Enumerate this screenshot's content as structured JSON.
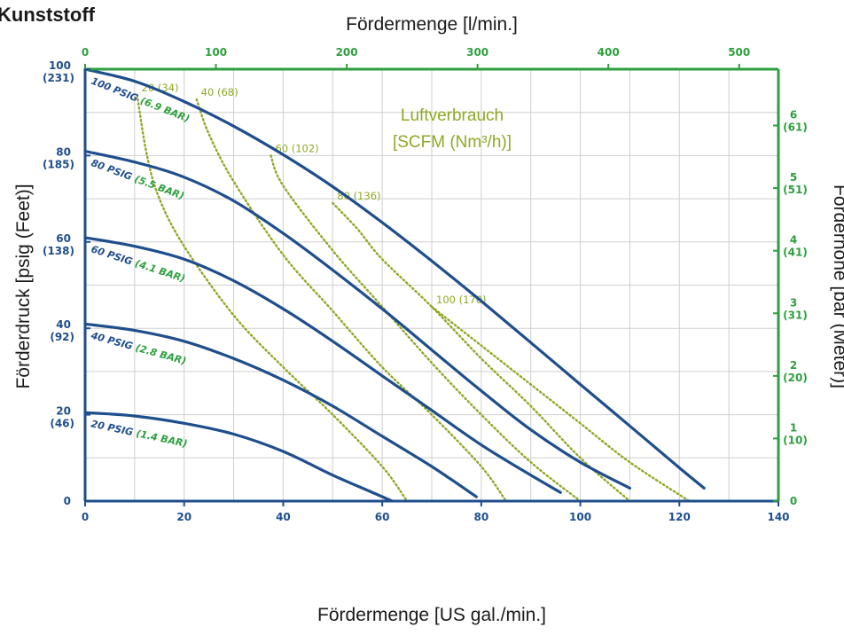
{
  "chart_data": {
    "type": "line",
    "title": "Kunststoff",
    "x_bottom": {
      "label": "Fördermenge [US gal./min.]",
      "range": [
        0,
        140
      ],
      "ticks": [
        0,
        20,
        40,
        60,
        80,
        100,
        120,
        140
      ]
    },
    "x_top": {
      "label": "Fördermenge [l/min.]",
      "range": [
        0,
        530
      ],
      "ticks": [
        0,
        100,
        200,
        300,
        400,
        500
      ]
    },
    "y_left": {
      "label": "Förderdruck [psig (Feet)]",
      "range": [
        0,
        100
      ],
      "ticks": [
        {
          "v": 100,
          "main": "100",
          "sub": "(231)"
        },
        {
          "v": 80,
          "main": "80",
          "sub": "(185)"
        },
        {
          "v": 60,
          "main": "60",
          "sub": "(138)"
        },
        {
          "v": 40,
          "main": "40",
          "sub": "(92)"
        },
        {
          "v": 20,
          "main": "20",
          "sub": "(46)"
        },
        {
          "v": 0,
          "main": "0",
          "sub": ""
        }
      ]
    },
    "y_right": {
      "label": "Förderhöhe [bar (Meter)]",
      "range": [
        0,
        6.9
      ],
      "ticks": [
        {
          "v": 6,
          "main": "6",
          "sub": "(61)"
        },
        {
          "v": 5,
          "main": "5",
          "sub": "(51)"
        },
        {
          "v": 4,
          "main": "4",
          "sub": "(41)"
        },
        {
          "v": 3,
          "main": "3",
          "sub": "(31)"
        },
        {
          "v": 2,
          "main": "2",
          "sub": "(20)"
        },
        {
          "v": 1,
          "main": "1",
          "sub": "(10)"
        },
        {
          "v": 0,
          "main": "0",
          "sub": ""
        }
      ]
    },
    "grid": true,
    "air_legend": {
      "line1": "Luftverbrauch",
      "line2": "[SCFM (Nm³/h)]"
    },
    "pressure_curves": [
      {
        "psig": "100 PSIG",
        "bar": "(6.9 BAR)",
        "x": [
          0,
          10,
          20,
          30,
          40,
          50,
          60,
          70,
          80,
          90,
          100,
          110,
          120,
          125
        ],
        "y": [
          100,
          97.2,
          92.5,
          86.8,
          80.2,
          72.8,
          64.5,
          55.6,
          46.3,
          36.7,
          27,
          17.4,
          7.7,
          3
        ]
      },
      {
        "psig": "80 PSIG",
        "bar": "(5.5 BAR)",
        "x": [
          0,
          10,
          20,
          30,
          40,
          50,
          60,
          70,
          80,
          90,
          100,
          110
        ],
        "y": [
          81,
          78.5,
          75,
          69.5,
          62,
          53.5,
          44.5,
          35,
          25.5,
          16.5,
          9,
          3
        ]
      },
      {
        "psig": "60 PSIG",
        "bar": "(4.1 BAR)",
        "x": [
          0,
          10,
          20,
          30,
          40,
          50,
          60,
          70,
          80,
          90,
          96
        ],
        "y": [
          61,
          59,
          56,
          51,
          44.5,
          37,
          29,
          21,
          13,
          6,
          2
        ]
      },
      {
        "psig": "40 PSIG",
        "bar": "(2.8 BAR)",
        "x": [
          0,
          10,
          20,
          30,
          40,
          50,
          60,
          70,
          79
        ],
        "y": [
          41,
          39.5,
          37,
          33,
          28,
          22,
          15,
          8,
          1
        ]
      },
      {
        "psig": "20 PSIG",
        "bar": "(1.4 BAR)",
        "x": [
          0,
          10,
          20,
          30,
          40,
          50,
          57,
          62
        ],
        "y": [
          20.5,
          19.7,
          18,
          15.5,
          11.5,
          6,
          2.5,
          0
        ]
      }
    ],
    "air_curves": [
      {
        "label": "20 (34)",
        "x": [
          10.5,
          12.5,
          15,
          20,
          30,
          40,
          50,
          60,
          65
        ],
        "y": [
          94,
          80,
          70,
          59,
          43,
          31,
          20,
          8,
          0
        ]
      },
      {
        "label": "40 (68)",
        "x": [
          22.5,
          25,
          30,
          40,
          50,
          60,
          70,
          80,
          85
        ],
        "y": [
          93,
          85,
          74,
          57,
          44,
          31,
          20,
          8,
          0
        ]
      },
      {
        "label": "60 (102)",
        "x": [
          37.5,
          40,
          50,
          60,
          70,
          80,
          90,
          100
        ],
        "y": [
          80,
          73,
          58,
          45,
          32,
          20,
          9,
          0
        ]
      },
      {
        "label": "80 (136)",
        "x": [
          50,
          55,
          60,
          70,
          80,
          90,
          100,
          110
        ],
        "y": [
          69,
          63,
          56,
          45,
          33,
          22,
          10,
          0
        ]
      },
      {
        "label": "100 (170)",
        "x": [
          70,
          80,
          90,
          100,
          110,
          122
        ],
        "y": [
          45,
          36,
          27,
          18,
          9,
          0
        ]
      }
    ]
  },
  "colors": {
    "blue": "#1f4e8c",
    "green": "#2e9f3e",
    "olive": "#8fa826",
    "grid": "#cfcfcf",
    "text": "#1a1a1a"
  }
}
